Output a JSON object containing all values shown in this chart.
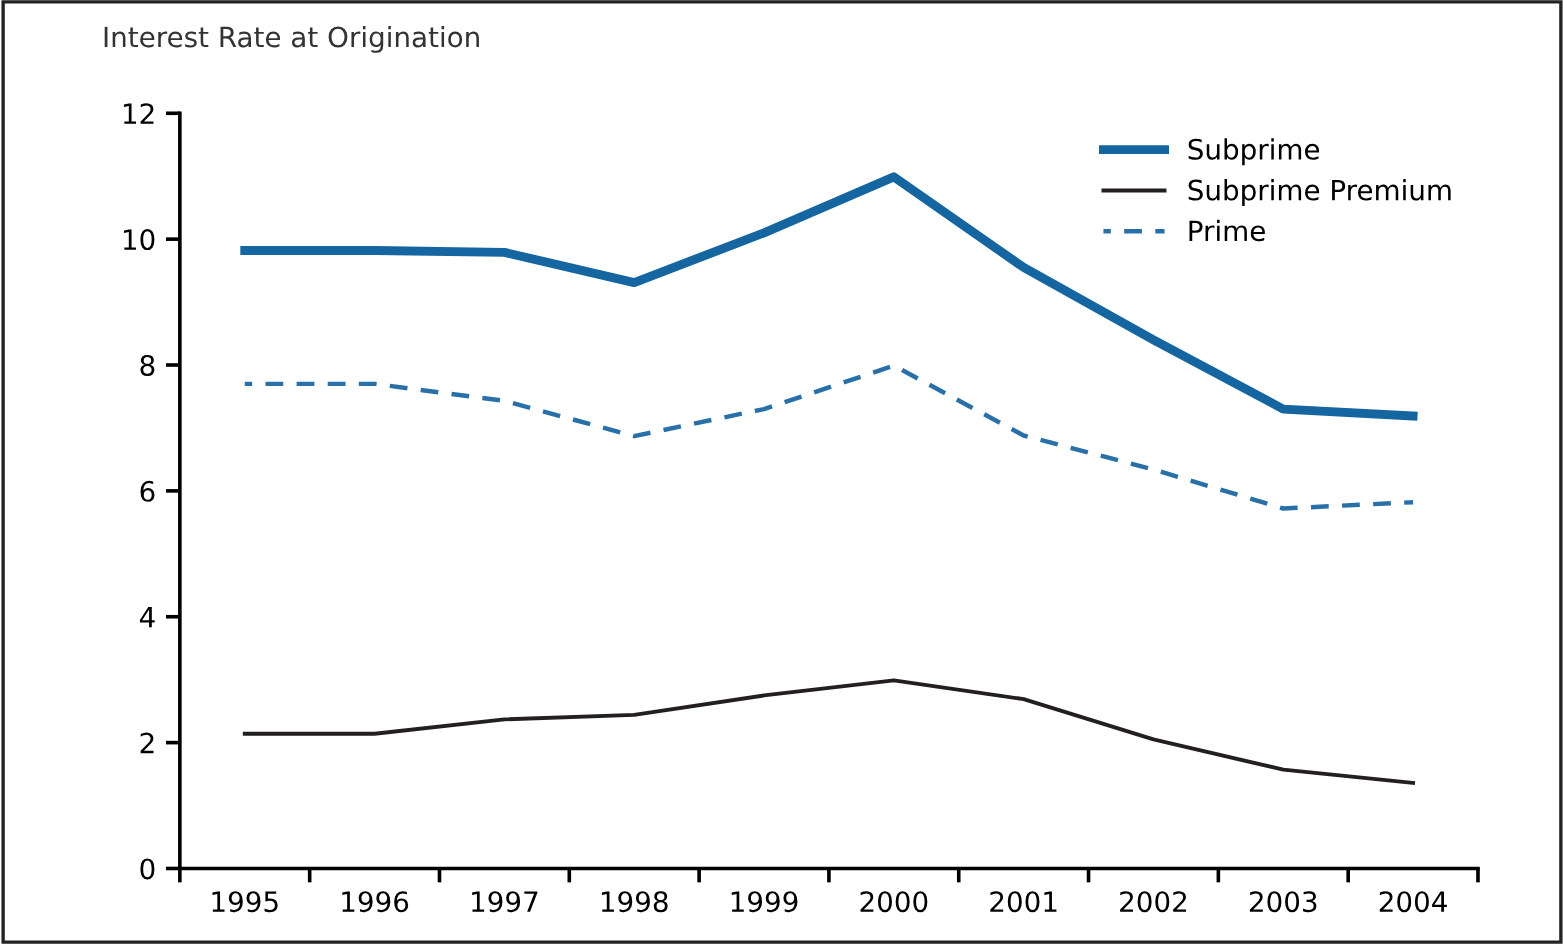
{
  "chart_data": {
    "type": "line",
    "ylabel": "Interest Rate at Origination",
    "categories": [
      "1995",
      "1996",
      "1997",
      "1998",
      "1999",
      "2000",
      "2001",
      "2002",
      "2003",
      "2004"
    ],
    "series": [
      {
        "name": "Subprime",
        "color": "#1465a0",
        "values": [
          9.82,
          9.82,
          9.79,
          9.31,
          10.1,
          10.99,
          9.55,
          8.4,
          7.3,
          7.19
        ]
      },
      {
        "name": "Subprime Premium",
        "color": "#231f20",
        "values": [
          2.14,
          2.14,
          2.37,
          2.44,
          2.75,
          2.99,
          2.69,
          2.05,
          1.57,
          1.36
        ]
      },
      {
        "name": "Prime",
        "color": "#2a70a8",
        "line_style": "dashed",
        "values": [
          7.7,
          7.7,
          7.43,
          6.87,
          7.3,
          7.99,
          6.88,
          6.34,
          5.72,
          5.82
        ]
      }
    ],
    "ylim": [
      0,
      12
    ],
    "yticks": [
      0,
      2,
      4,
      6,
      8,
      10,
      12
    ],
    "grid": false,
    "legend": "top right",
    "marker": "none"
  }
}
